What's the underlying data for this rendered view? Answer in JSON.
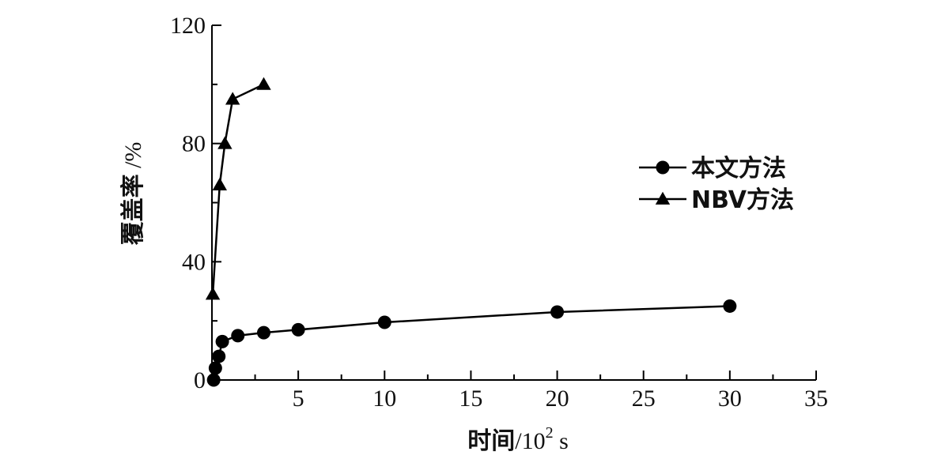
{
  "chart_data": {
    "type": "line",
    "xlabel": "时间",
    "xlabel_unit": "/10",
    "xlabel_unit_exp": "2",
    "xlabel_unit_suffix": " s",
    "ylabel": "覆盖率",
    "ylabel_unit": " /%",
    "xlim": [
      0,
      35
    ],
    "ylim": [
      0,
      120
    ],
    "xticks": [
      0,
      5,
      10,
      15,
      20,
      25,
      30,
      35
    ],
    "xtick_labels": [
      "",
      "5",
      "10",
      "15",
      "20",
      "25",
      "30",
      "35"
    ],
    "yticks": [
      0,
      40,
      80,
      120
    ],
    "ytick_labels": [
      "0",
      "40",
      "80",
      "120"
    ],
    "grid": false,
    "legend_position": "right",
    "series": [
      {
        "name": "本文方法",
        "marker": "circle",
        "color": "#000000",
        "x": [
          0.1,
          0.2,
          0.4,
          0.6,
          1.5,
          3.0,
          5.0,
          10.0,
          20.0,
          30.0
        ],
        "y": [
          0,
          4,
          8,
          13,
          15,
          16,
          17,
          19.5,
          23,
          25
        ]
      },
      {
        "name": "NBV方法",
        "marker": "triangle",
        "color": "#000000",
        "x": [
          0.05,
          0.45,
          0.75,
          1.2,
          3.0
        ],
        "y": [
          29,
          66,
          80,
          95,
          100
        ]
      }
    ]
  }
}
